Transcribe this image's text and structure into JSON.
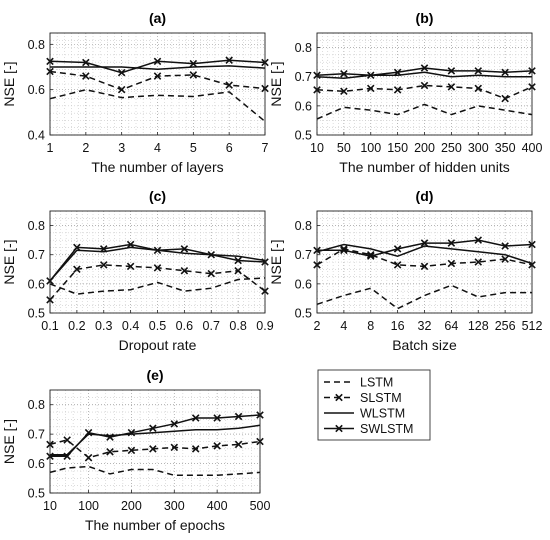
{
  "series_styles": {
    "LSTM": {
      "dash": "6,4",
      "marker": "none",
      "color": "#111111"
    },
    "SLSTM": {
      "dash": "6,4",
      "marker": "x",
      "color": "#111111"
    },
    "WLSTM": {
      "dash": "",
      "marker": "none",
      "color": "#111111"
    },
    "SWLSTM": {
      "dash": "",
      "marker": "x",
      "color": "#111111"
    }
  },
  "legend": {
    "entries": [
      "LSTM",
      "SLSTM",
      "WLSTM",
      "SWLSTM"
    ]
  },
  "chart_data": [
    {
      "type": "line",
      "title": "(a)",
      "xlabel": "The number of layers",
      "ylabel": "NSE [-]",
      "x": [
        1,
        2,
        3,
        4,
        5,
        6,
        7
      ],
      "xticks": [
        "1",
        "2",
        "3",
        "4",
        "5",
        "6",
        "7"
      ],
      "ylim": [
        0.4,
        0.85
      ],
      "yticks": [
        "0.4",
        "0.6",
        "0.8"
      ],
      "grid": true,
      "series": [
        {
          "name": "LSTM",
          "values": [
            0.56,
            0.6,
            0.565,
            0.575,
            0.57,
            0.59,
            0.46
          ]
        },
        {
          "name": "SLSTM",
          "values": [
            0.68,
            0.66,
            0.6,
            0.66,
            0.665,
            0.62,
            0.605
          ]
        },
        {
          "name": "WLSTM",
          "values": [
            0.7,
            0.7,
            0.7,
            0.69,
            0.7,
            0.705,
            0.695
          ]
        },
        {
          "name": "SWLSTM",
          "values": [
            0.725,
            0.72,
            0.675,
            0.725,
            0.715,
            0.73,
            0.72
          ]
        }
      ]
    },
    {
      "type": "line",
      "title": "(b)",
      "xlabel": "The number of hidden units",
      "ylabel": "NSE [-]",
      "x": [
        10,
        50,
        100,
        150,
        200,
        250,
        300,
        350,
        400
      ],
      "xticks": [
        "10",
        "50",
        "100",
        "150",
        "200",
        "250",
        "300",
        "350",
        "400"
      ],
      "ylim": [
        0.5,
        0.85
      ],
      "yticks": [
        "0.5",
        "0.6",
        "0.7",
        "0.8"
      ],
      "grid": true,
      "series": [
        {
          "name": "LSTM",
          "values": [
            0.555,
            0.595,
            0.585,
            0.57,
            0.605,
            0.57,
            0.6,
            0.585,
            0.57
          ]
        },
        {
          "name": "SLSTM",
          "values": [
            0.655,
            0.65,
            0.66,
            0.655,
            0.67,
            0.665,
            0.66,
            0.625,
            0.665
          ]
        },
        {
          "name": "WLSTM",
          "values": [
            0.7,
            0.695,
            0.705,
            0.705,
            0.715,
            0.7,
            0.705,
            0.7,
            0.7
          ]
        },
        {
          "name": "SWLSTM",
          "values": [
            0.705,
            0.71,
            0.705,
            0.715,
            0.73,
            0.72,
            0.72,
            0.715,
            0.72
          ]
        }
      ]
    },
    {
      "type": "line",
      "title": "(c)",
      "xlabel": "Dropout rate",
      "ylabel": "NSE [-]",
      "x": [
        0.1,
        0.2,
        0.3,
        0.4,
        0.5,
        0.6,
        0.7,
        0.8,
        0.9
      ],
      "xticks": [
        "0.1",
        "0.2",
        "0.3",
        "0.4",
        "0.5",
        "0.6",
        "0.7",
        "0.8",
        "0.9"
      ],
      "ylim": [
        0.5,
        0.85
      ],
      "yticks": [
        "0.5",
        "0.6",
        "0.7",
        "0.8"
      ],
      "grid": true,
      "series": [
        {
          "name": "LSTM",
          "values": [
            0.6,
            0.565,
            0.575,
            0.58,
            0.605,
            0.575,
            0.585,
            0.615,
            0.62
          ]
        },
        {
          "name": "SLSTM",
          "values": [
            0.545,
            0.65,
            0.665,
            0.66,
            0.655,
            0.645,
            0.635,
            0.645,
            0.575
          ]
        },
        {
          "name": "WLSTM",
          "values": [
            0.61,
            0.715,
            0.71,
            0.725,
            0.715,
            0.705,
            0.7,
            0.695,
            0.68
          ]
        },
        {
          "name": "SWLSTM",
          "values": [
            0.61,
            0.725,
            0.72,
            0.735,
            0.715,
            0.72,
            0.7,
            0.68,
            0.675
          ]
        }
      ]
    },
    {
      "type": "line",
      "title": "(d)",
      "xlabel": "Batch size",
      "ylabel": "NSE [-]",
      "x": [
        2,
        4,
        8,
        16,
        32,
        64,
        128,
        256,
        512
      ],
      "xticks": [
        "2",
        "4",
        "8",
        "16",
        "32",
        "64",
        "128",
        "256",
        "512"
      ],
      "ylim": [
        0.5,
        0.85
      ],
      "yticks": [
        "0.5",
        "0.6",
        "0.7",
        "0.8"
      ],
      "grid": true,
      "series": [
        {
          "name": "LSTM",
          "values": [
            0.53,
            0.56,
            0.585,
            0.515,
            0.56,
            0.595,
            0.555,
            0.57,
            0.57
          ]
        },
        {
          "name": "SLSTM",
          "values": [
            0.665,
            0.72,
            0.7,
            0.665,
            0.66,
            0.67,
            0.675,
            0.685,
            0.665
          ]
        },
        {
          "name": "WLSTM",
          "values": [
            0.71,
            0.735,
            0.72,
            0.695,
            0.73,
            0.72,
            0.71,
            0.7,
            0.67
          ]
        },
        {
          "name": "SWLSTM",
          "values": [
            0.715,
            0.715,
            0.695,
            0.72,
            0.74,
            0.74,
            0.75,
            0.73,
            0.735
          ]
        }
      ]
    },
    {
      "type": "line",
      "title": "(e)",
      "xlabel": "The number of epochs",
      "ylabel": "NSE [-]",
      "x": [
        10,
        50,
        100,
        150,
        200,
        250,
        300,
        350,
        400,
        450,
        500
      ],
      "xlim": [
        10,
        500
      ],
      "xticks": [
        "10",
        "100",
        "200",
        "300",
        "400",
        "500"
      ],
      "xtick_values": [
        10,
        100,
        200,
        300,
        400,
        500
      ],
      "ylim": [
        0.5,
        0.85
      ],
      "yticks": [
        "0.5",
        "0.6",
        "0.7",
        "0.8"
      ],
      "grid": true,
      "series": [
        {
          "name": "LSTM",
          "values": [
            0.57,
            0.585,
            0.59,
            0.565,
            0.58,
            0.58,
            0.56,
            0.56,
            0.56,
            0.565,
            0.57
          ]
        },
        {
          "name": "SLSTM",
          "values": [
            0.665,
            0.68,
            0.62,
            0.64,
            0.645,
            0.65,
            0.655,
            0.65,
            0.66,
            0.665,
            0.675
          ]
        },
        {
          "name": "WLSTM",
          "values": [
            0.63,
            0.63,
            0.7,
            0.695,
            0.7,
            0.705,
            0.71,
            0.715,
            0.715,
            0.72,
            0.73
          ]
        },
        {
          "name": "SWLSTM",
          "values": [
            0.625,
            0.625,
            0.705,
            0.69,
            0.705,
            0.72,
            0.735,
            0.755,
            0.755,
            0.76,
            0.765
          ]
        }
      ]
    }
  ]
}
